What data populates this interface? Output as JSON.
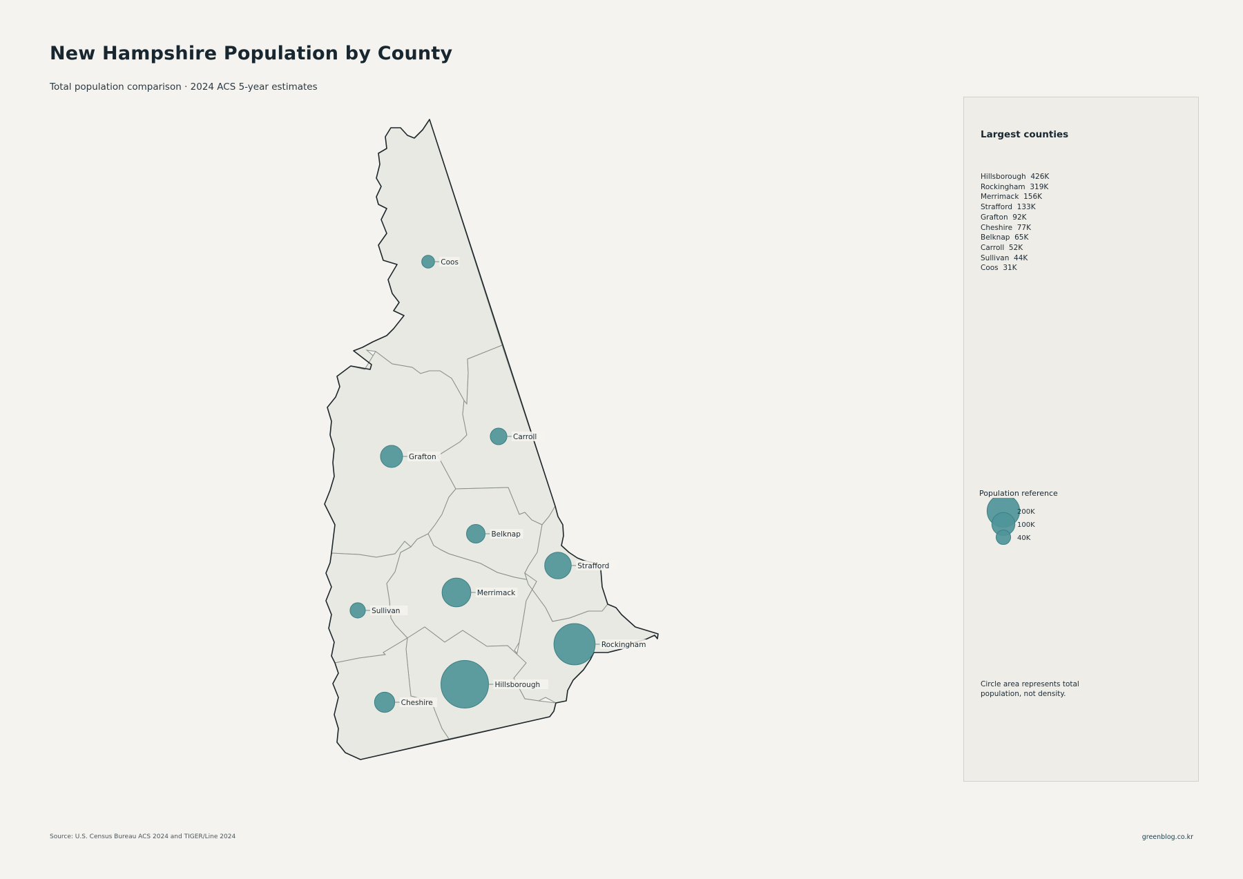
{
  "title": "New Hampshire Population by County",
  "subtitle": "Total population comparison · 2024 ACS 5-year estimates",
  "counties": [
    {
      "name": "Coos",
      "population": 31000
    },
    {
      "name": "Carroll",
      "population": 52000
    },
    {
      "name": "Grafton",
      "population": 92000
    },
    {
      "name": "Belknap",
      "population": 65000
    },
    {
      "name": "Strafford",
      "population": 133000
    },
    {
      "name": "Merrimack",
      "population": 156000
    },
    {
      "name": "Sullivan",
      "population": 44000
    },
    {
      "name": "Rockingham",
      "population": 319000
    },
    {
      "name": "Hillsborough",
      "population": 426000
    },
    {
      "name": "Cheshire",
      "population": 77000
    }
  ],
  "colors": {
    "bubble": "#4f9599",
    "county_fill": "#e8e9e2",
    "county_border": "#8a8f8a",
    "background": "#f4f3ef",
    "panel": "#efede8"
  },
  "panel": {
    "title": "Largest counties",
    "ranking": [
      "Hillsborough  426K",
      "Rockingham  319K",
      "Merrimack  156K",
      "Strafford  133K",
      "Grafton  92K",
      "Cheshire  77K",
      "Belknap  65K",
      "Carroll  52K",
      "Sullivan  44K",
      "Coos  31K"
    ],
    "reference_title": "Population reference",
    "reference": [
      {
        "label": "200K",
        "population": 200000
      },
      {
        "label": "100K",
        "population": 100000
      },
      {
        "label": "40K",
        "population": 40000
      }
    ],
    "note": "Circle area represents total population, not density."
  },
  "source": "Source: U.S. Census Bureau ACS 2024 and TIGER/Line 2024",
  "credit": "greenblog.co.kr"
}
